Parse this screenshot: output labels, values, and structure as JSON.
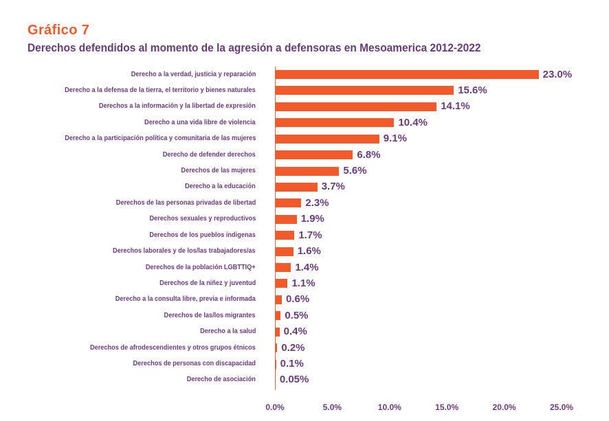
{
  "colors": {
    "accent": "#F15A2B",
    "text": "#6A3B7C",
    "background": "#FFFFFF"
  },
  "chart_data": {
    "type": "bar",
    "orientation": "horizontal",
    "title": "Gráfico 7",
    "subtitle": "Derechos defendidos al momento de la agresión a defensoras en Mesoamerica 2012-2022",
    "categories": [
      "Derecho a la verdad, justicia y reparación",
      "Derecho a la defensa de la tierra, el territorio y bienes naturales",
      "Derechos a la información y la libertad de expresión",
      "Derecho a una vida libre de violencia",
      "Derecho a la participación política y comunitaria de las mujeres",
      "Derecho de defender derechos",
      "Derechos de las mujeres",
      "Derecho a la educación",
      "Derechos de las personas privadas de libertad",
      "Derechos sexuales y reproductivos",
      "Derechos de los pueblos índigenas",
      "Derechos laborales y de los/las trabajadores/as",
      "Derechos de la población LGBTTIQ+",
      "Derechos de la niñez y juventud",
      "Derecho a la consulta libre, previa e informada",
      "Derechos de las/los migrantes",
      "Derecho a la salud",
      "Derechos de afrodescendientes y otros grupos étnicos",
      "Derechos de personas con discapacidad",
      "Derecho de asociación"
    ],
    "values": [
      23.0,
      15.6,
      14.1,
      10.4,
      9.1,
      6.8,
      5.6,
      3.7,
      2.3,
      1.9,
      1.7,
      1.6,
      1.4,
      1.1,
      0.6,
      0.5,
      0.4,
      0.2,
      0.1,
      0.05
    ],
    "value_labels": [
      "23.0%",
      "15.6%",
      "14.1%",
      "10.4%",
      "9.1%",
      "6.8%",
      "5.6%",
      "3.7%",
      "2.3%",
      "1.9%",
      "1.7%",
      "1.6%",
      "1.4%",
      "1.1%",
      "0.6%",
      "0.5%",
      "0.4%",
      "0.2%",
      "0.1%",
      "0.05%"
    ],
    "xlim": [
      0,
      25
    ],
    "xticks": [
      0,
      5,
      10,
      15,
      20,
      25
    ],
    "xtick_labels": [
      "0.0%",
      "5.0%",
      "10.0%",
      "15.0%",
      "20.0%",
      "25.0%"
    ],
    "grid": false,
    "legend": false
  }
}
